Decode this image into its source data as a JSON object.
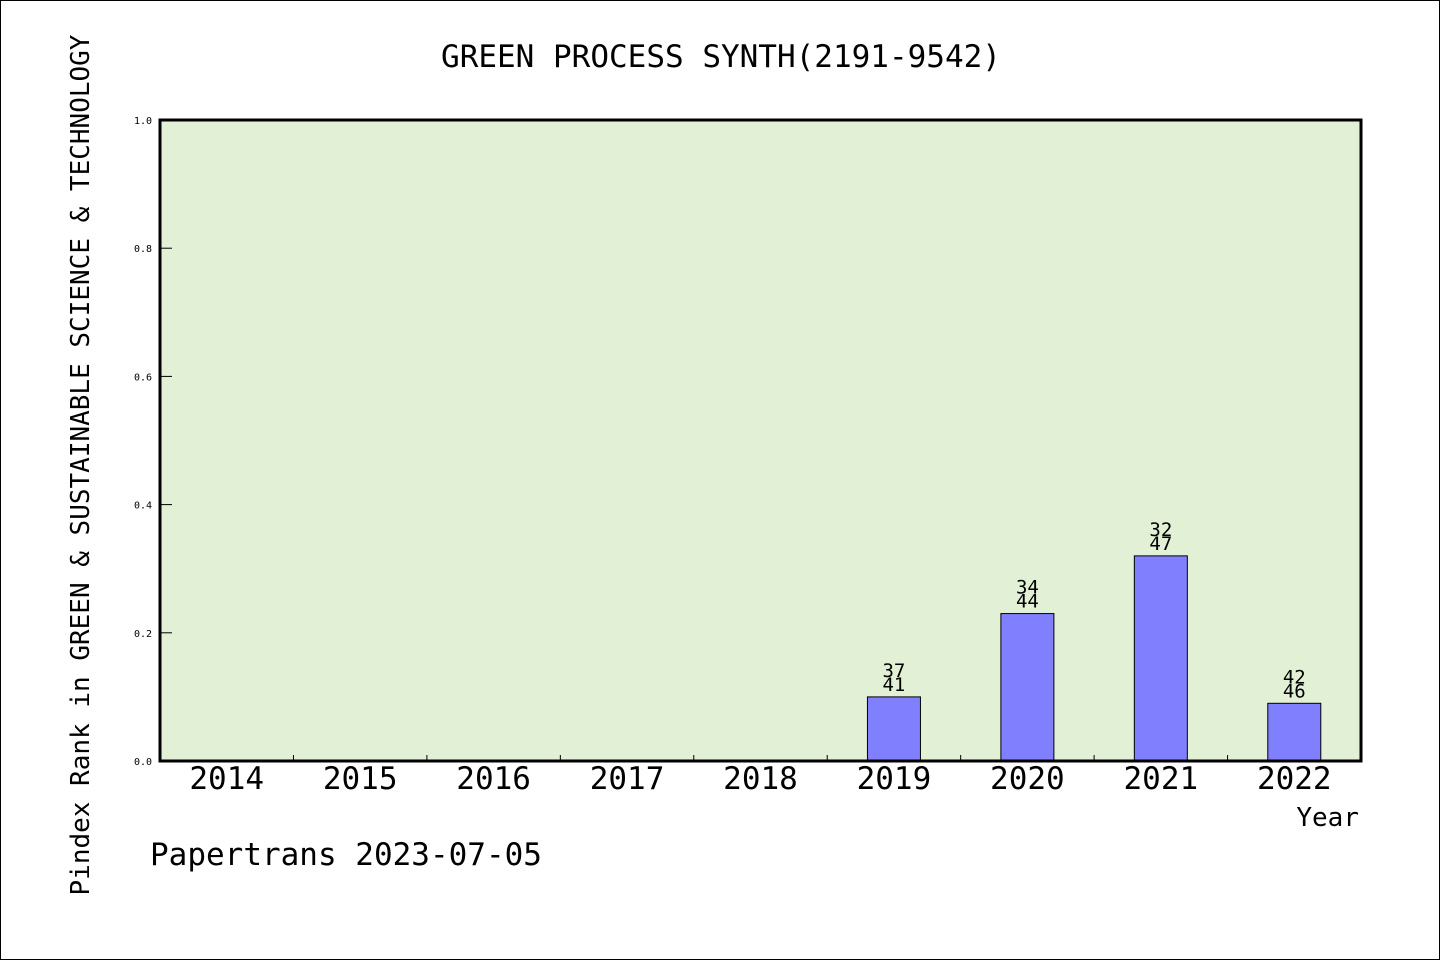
{
  "chart_data": {
    "type": "bar",
    "title": "GREEN PROCESS SYNTH(2191-9542)",
    "xlabel": "Year",
    "ylabel": "Pindex Rank in GREEN & SUSTAINABLE SCIENCE & TECHNOLOGY",
    "categories": [
      "2014",
      "2015",
      "2016",
      "2017",
      "2018",
      "2019",
      "2020",
      "2021",
      "2022"
    ],
    "values": [
      null,
      null,
      null,
      null,
      null,
      0.1,
      0.23,
      0.32,
      0.09
    ],
    "bar_labels": [
      null,
      null,
      null,
      null,
      null,
      {
        "rank": "37",
        "total": "41"
      },
      {
        "rank": "34",
        "total": "44"
      },
      {
        "rank": "32",
        "total": "47"
      },
      {
        "rank": "42",
        "total": "46"
      }
    ],
    "ylim": [
      0,
      1.0
    ],
    "yticks": [
      "0.0",
      "0.2",
      "0.4",
      "0.6",
      "0.8",
      "1.0"
    ],
    "grid": false,
    "colors": {
      "plot_background": "#e2f0d6",
      "bar_fill": "#8080ff",
      "bar_stroke": "#000000"
    }
  },
  "footer": "Papertrans 2023-07-05"
}
